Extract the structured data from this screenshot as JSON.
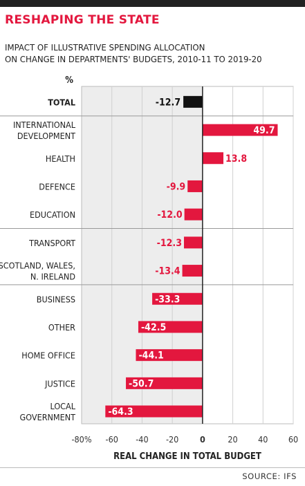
{
  "headline": "RESHAPING THE STATE",
  "subtitle_line1": "IMPACT OF ILLUSTRATIVE SPENDING ALLOCATION",
  "subtitle_line2": "ON CHANGE IN DEPARTMENTS' BUDGETS, 2010-11 TO 2019-20",
  "source": "SOURCE: IFS",
  "colors": {
    "accent": "#e3173e",
    "total_bar": "#111111",
    "plot_bg": "#ededed"
  },
  "chart_data": {
    "type": "bar",
    "orientation": "horizontal",
    "unit_label": "%",
    "categories": [
      [
        "TOTAL"
      ],
      [
        "INTERNATIONAL",
        "DEVELOPMENT"
      ],
      [
        "HEALTH"
      ],
      [
        "DEFENCE"
      ],
      [
        "EDUCATION"
      ],
      [
        "TRANSPORT"
      ],
      [
        "SCOTLAND, WALES,",
        "N. IRELAND"
      ],
      [
        "BUSINESS"
      ],
      [
        "OTHER"
      ],
      [
        "HOME OFFICE"
      ],
      [
        "JUSTICE"
      ],
      [
        "LOCAL",
        "GOVERNMENT"
      ]
    ],
    "values": [
      -12.7,
      49.7,
      13.8,
      -9.9,
      -12.0,
      -12.3,
      -13.4,
      -33.3,
      -42.5,
      -44.1,
      -50.7,
      -64.3
    ],
    "value_labels": [
      "-12.7",
      "49.7",
      "13.8",
      "-9.9",
      "-12.0",
      "-12.3",
      "-13.4",
      "-33.3",
      "-42.5",
      "-44.1",
      "-50.7",
      "-64.3"
    ],
    "xlim": [
      -80,
      60
    ],
    "xticks": [
      -80,
      -60,
      -40,
      -20,
      0,
      20,
      40,
      60
    ],
    "xtick_labels": [
      "-80%",
      "-60",
      "-40",
      "-20",
      "0",
      "20",
      "40",
      "60"
    ],
    "xlabel": "REAL CHANGE IN TOTAL BUDGET",
    "negative_region_shaded": true,
    "group_separators_after": [
      0,
      4,
      6
    ]
  }
}
